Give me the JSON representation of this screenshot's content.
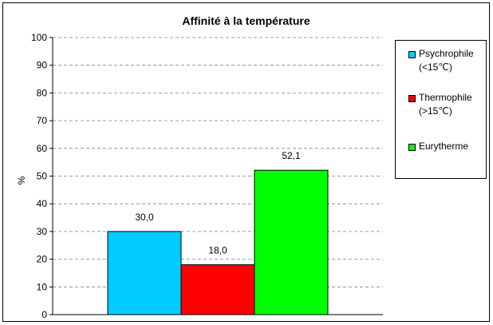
{
  "chart_data": {
    "type": "bar",
    "title": "Affinité à la température",
    "ylabel": "%",
    "ylim": [
      0,
      100
    ],
    "yticks": [
      "0",
      "10",
      "20",
      "30",
      "40",
      "50",
      "60",
      "70",
      "80",
      "90",
      "100"
    ],
    "grid": true,
    "legend_position": "right",
    "series": [
      {
        "name": "Psychrophile\n(<15℃)",
        "values": [
          30.0
        ],
        "label": "30,0",
        "color": "#00CCFF"
      },
      {
        "name": "Thermophile\n(>15℃)",
        "values": [
          18.0
        ],
        "label": "18,0",
        "color": "#FF0000"
      },
      {
        "name": "Eurytherme",
        "values": [
          52.1
        ],
        "label": "52,1",
        "color": "#00FF00"
      }
    ]
  }
}
